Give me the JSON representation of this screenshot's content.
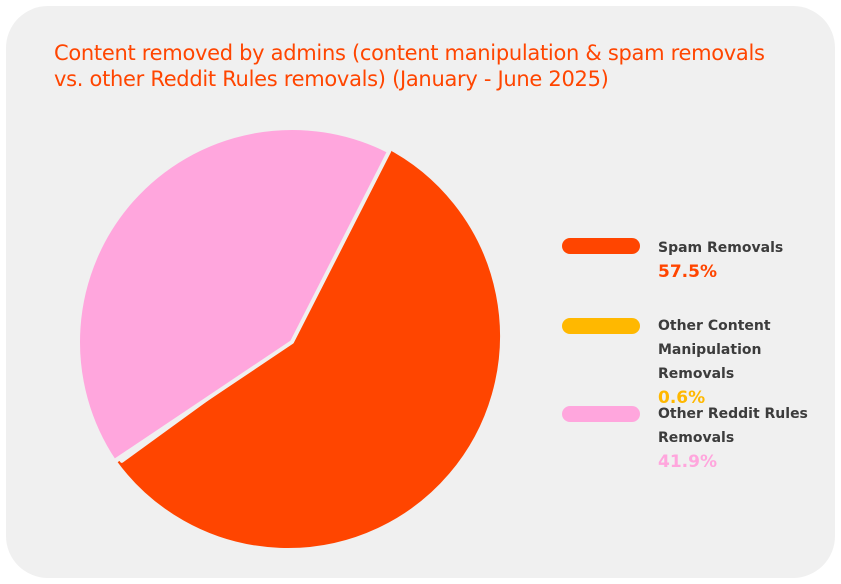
{
  "title": "Content removed by admins (content manipulation & spam removals vs. other Reddit Rules removals) (January - June 2025)",
  "colors": {
    "title": "#ff4500",
    "card": "#f0f0f0"
  },
  "chart_data": {
    "type": "pie",
    "title": "Content removed by admins (content manipulation & spam removals vs. other Reddit Rules removals) (January - June 2025)",
    "legend_position": "right",
    "slices": [
      {
        "label": "Spam Removals",
        "display": "57.5%",
        "value": 57.5,
        "color": "#ff4500"
      },
      {
        "label": "Other Content Manipulation Removals",
        "display": "0.6%",
        "value": 0.6,
        "color": "#ffb800"
      },
      {
        "label": "Other Reddit Rules Removals",
        "display": "41.9%",
        "value": 41.9,
        "color": "#ffa6dd"
      }
    ]
  }
}
